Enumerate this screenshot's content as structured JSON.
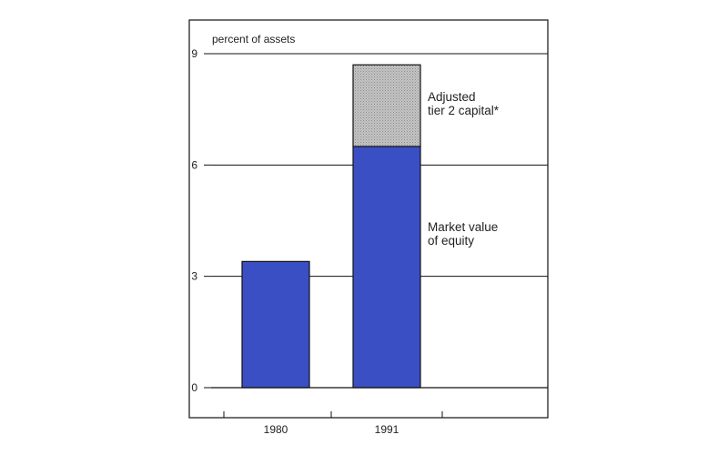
{
  "chart_data": {
    "type": "bar",
    "stacked": true,
    "title": "",
    "xlabel": "",
    "ylabel": "percent of assets",
    "ylim": [
      0,
      9
    ],
    "yticks": [
      "0",
      "3",
      "6",
      "9"
    ],
    "grid": "horizontal lines at 3, 6, 9 (right side)",
    "categories": [
      "1980",
      "1991"
    ],
    "series": [
      {
        "name": "Market value of equity",
        "values": [
          3.4,
          6.5
        ],
        "color": "#3b4fc4"
      },
      {
        "name": "Adjusted tier 2 capital*",
        "values": [
          0,
          2.2
        ],
        "color": "#b9b9b9"
      }
    ],
    "annotations": [
      {
        "lines": [
          "Adjusted",
          "tier 2 capital*"
        ]
      },
      {
        "lines": [
          "Market value",
          "of equity"
        ]
      }
    ]
  }
}
